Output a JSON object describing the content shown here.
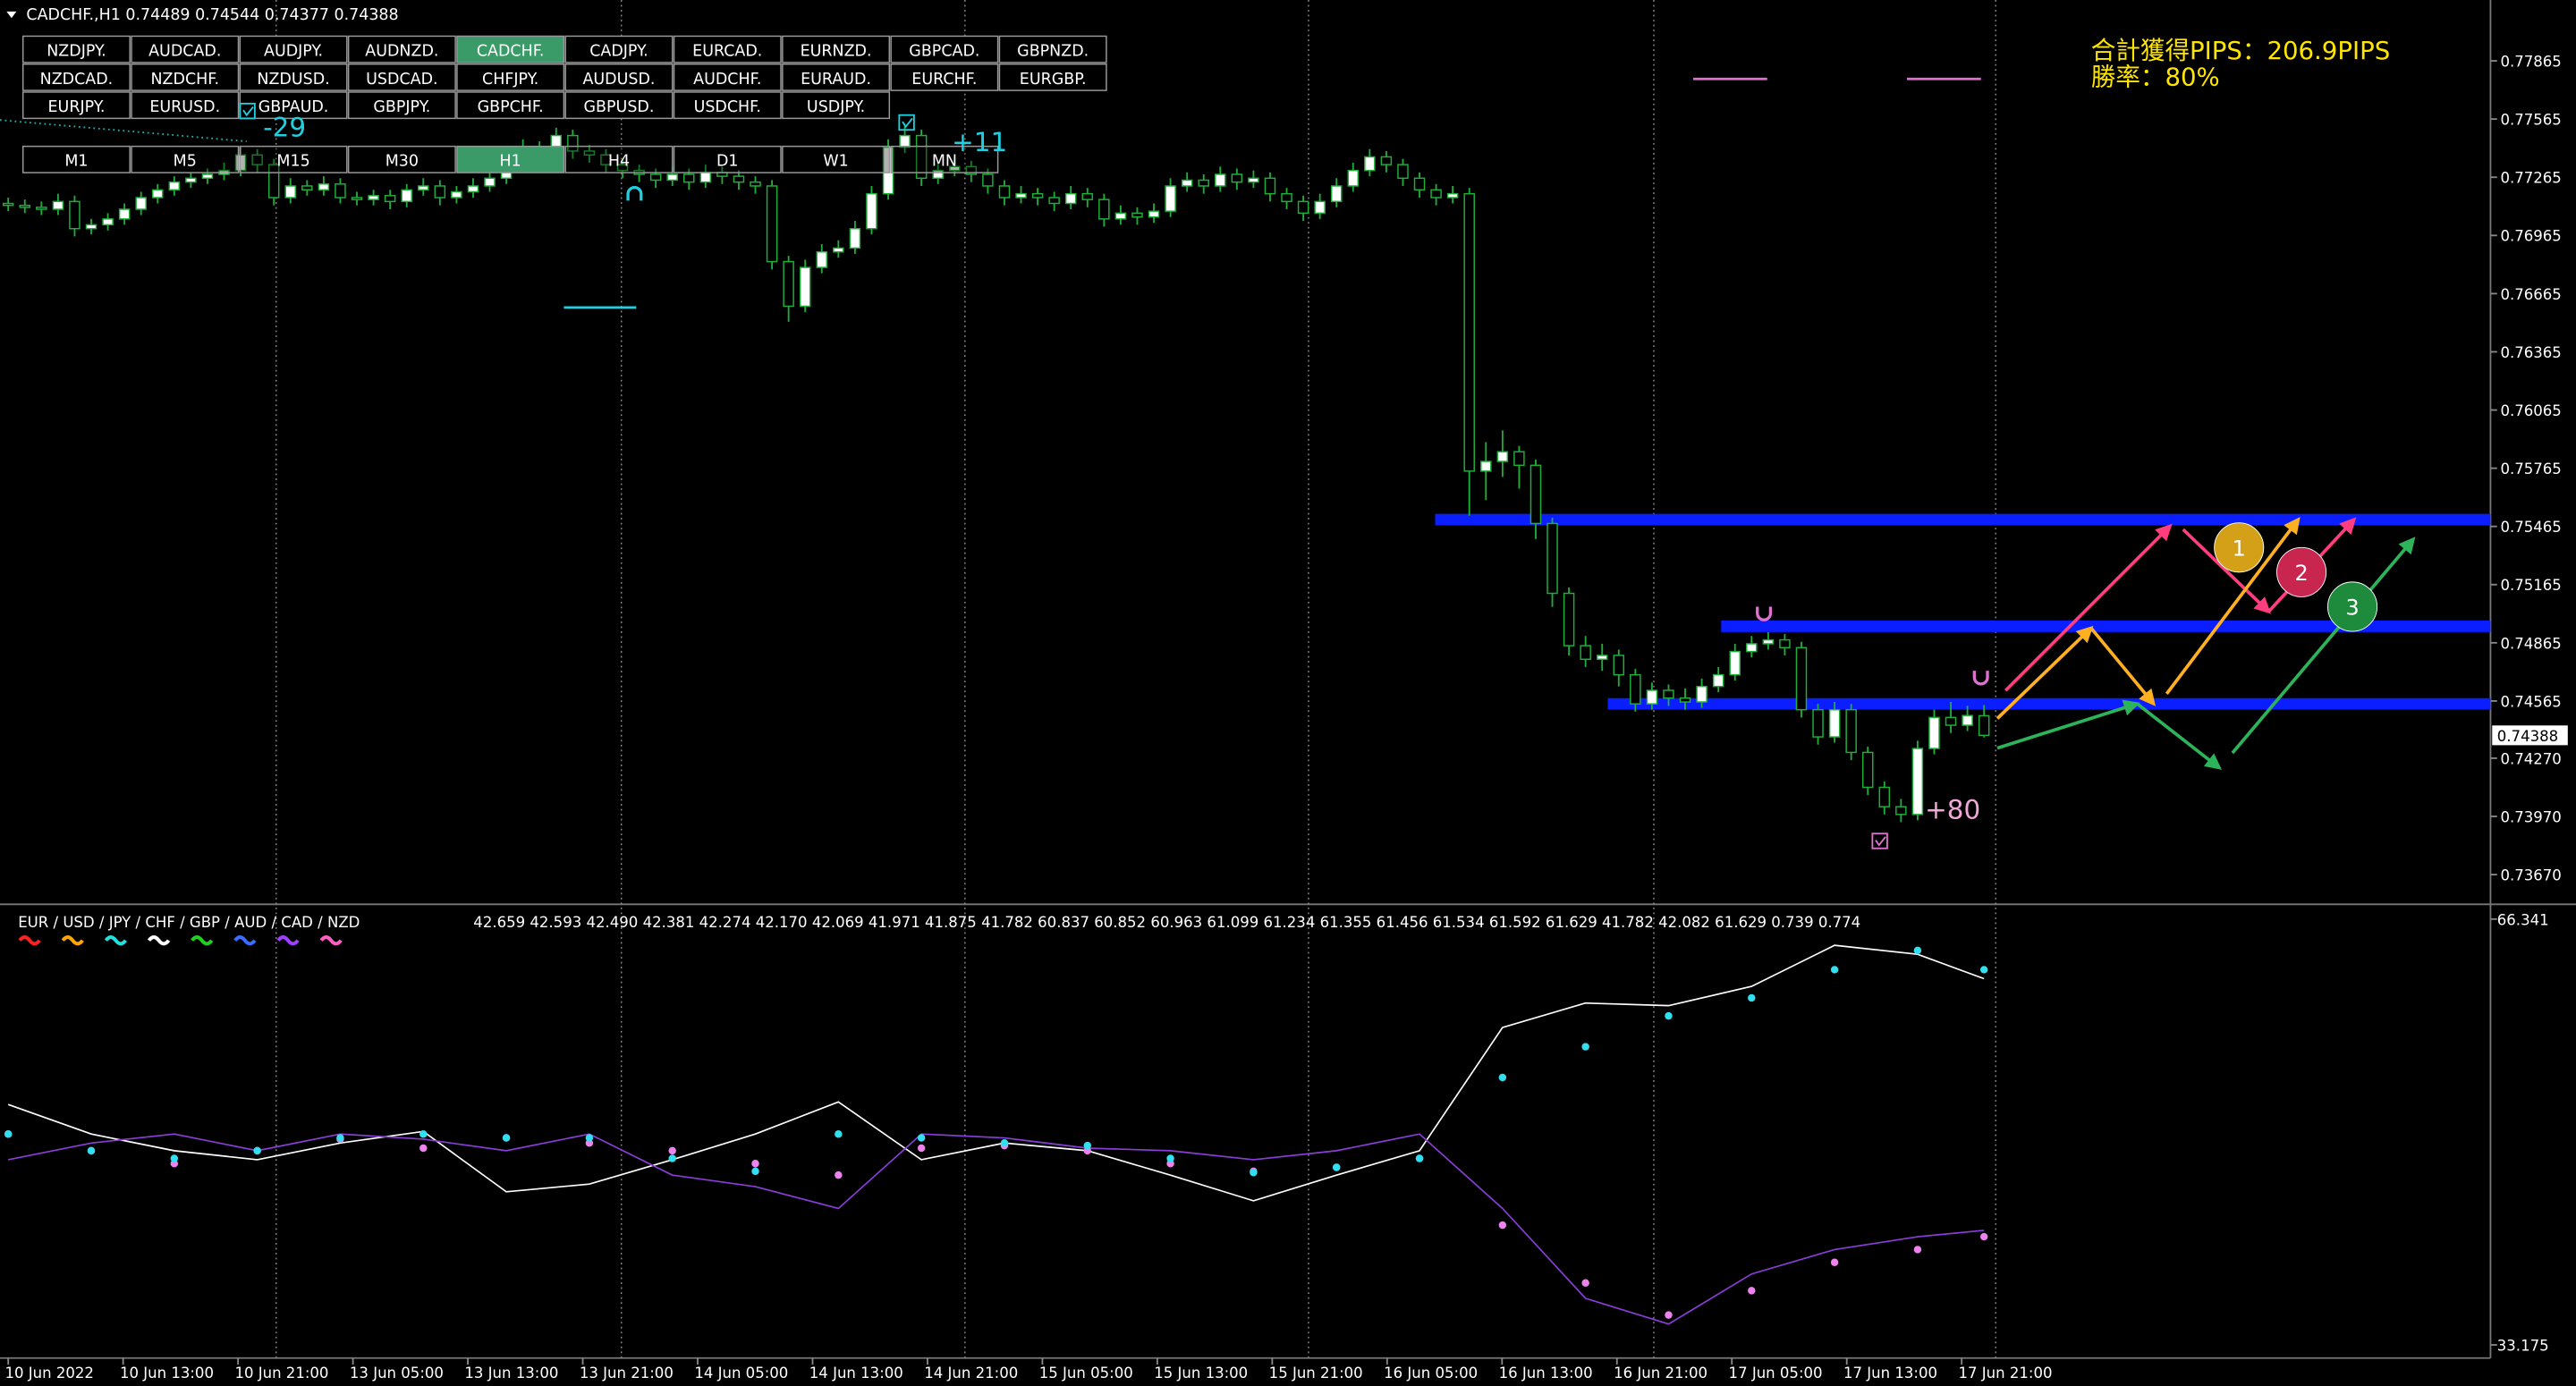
{
  "header": "CADCHF.,H1 0.74489 0.74544 0.74377 0.74388",
  "symbols": [
    [
      "NZDJPY.",
      "AUDCAD.",
      "AUDJPY.",
      "AUDNZD.",
      "CADCHF.",
      "CADJPY.",
      "EURCAD.",
      "EURNZD.",
      "GBPCAD.",
      "GBPNZD."
    ],
    [
      "NZDCAD.",
      "NZDCHF.",
      "NZDUSD.",
      "USDCAD.",
      "CHFJPY.",
      "AUDUSD.",
      "AUDCHF.",
      "EURAUD.",
      "EURCHF.",
      "EURGBP."
    ],
    [
      "EURJPY.",
      "EURUSD.",
      "GBPAUD.",
      "GBPJPY.",
      "GBPCHF.",
      "GBPUSD.",
      "USDCHF.",
      "USDJPY."
    ]
  ],
  "timeframes": [
    "M1",
    "M5",
    "M15",
    "M30",
    "H1",
    "H4",
    "D1",
    "W1",
    "MN"
  ],
  "stats": [
    "合計獲得PIPS：206.9PIPS",
    "勝率：80%"
  ],
  "trade_labels": [
    "-29",
    "+11",
    "+80"
  ],
  "scenario_labels": [
    "1",
    "2",
    "3"
  ],
  "chart_data": [
    {
      "type": "candlestick",
      "ylim": [
        0.73534,
        0.78077
      ],
      "yticks": [
        0.77865,
        0.77565,
        0.77265,
        0.76965,
        0.76665,
        0.76365,
        0.76065,
        0.75765,
        0.75465,
        0.75165,
        0.74865,
        0.74565,
        {
          "value": 0.7427,
          "label": "0.74270"
        },
        {
          "value": 0.7397,
          "label": "0.73970"
        },
        {
          "value": 0.7367,
          "label": "0.73670"
        }
      ],
      "current_price": 0.74388,
      "levels": [
        0.755,
        0.7495,
        0.7455
      ],
      "level_color": "#0a1eff",
      "up_color": "#ffffff",
      "down_color": "#000000",
      "wick_color": "#1fae3a",
      "x_labels": [
        "10 Jun 2022",
        "10 Jun 13:00",
        "10 Jun 21:00",
        "13 Jun 05:00",
        "13 Jun 13:00",
        "13 Jun 21:00",
        "14 Jun 05:00",
        "14 Jun 13:00",
        "14 Jun 21:00",
        "15 Jun 05:00",
        "15 Jun 13:00",
        "15 Jun 21:00",
        "16 Jun 05:00",
        "16 Jun 13:00",
        "16 Jun 21:00",
        "17 Jun 05:00",
        "17 Jun 13:00",
        "17 Jun 21:00"
      ],
      "candles": [
        [
          0.7713,
          0.7716,
          0.7709,
          0.7712
        ],
        [
          0.7712,
          0.7715,
          0.7708,
          0.7711
        ],
        [
          0.7711,
          0.7714,
          0.7707,
          0.771
        ],
        [
          0.771,
          0.7718,
          0.7707,
          0.7714
        ],
        [
          0.7714,
          0.7717,
          0.7696,
          0.77
        ],
        [
          0.77,
          0.7705,
          0.7697,
          0.7702
        ],
        [
          0.7702,
          0.7708,
          0.7699,
          0.7705
        ],
        [
          0.7705,
          0.7713,
          0.7702,
          0.771
        ],
        [
          0.771,
          0.7719,
          0.7707,
          0.7716
        ],
        [
          0.7716,
          0.7723,
          0.7713,
          0.772
        ],
        [
          0.772,
          0.7727,
          0.7717,
          0.7724
        ],
        [
          0.7724,
          0.7729,
          0.7721,
          0.7726
        ],
        [
          0.7726,
          0.7731,
          0.7723,
          0.7728
        ],
        [
          0.7728,
          0.7734,
          0.7725,
          0.773
        ],
        [
          0.773,
          0.7742,
          0.7727,
          0.7738
        ],
        [
          0.7738,
          0.7741,
          0.7729,
          0.7733
        ],
        [
          0.7733,
          0.7736,
          0.7712,
          0.7716
        ],
        [
          0.7716,
          0.7726,
          0.7713,
          0.7722
        ],
        [
          0.7722,
          0.7725,
          0.7717,
          0.772
        ],
        [
          0.772,
          0.7727,
          0.7717,
          0.7723
        ],
        [
          0.7723,
          0.7726,
          0.7713,
          0.7716
        ],
        [
          0.7716,
          0.7719,
          0.7712,
          0.7715
        ],
        [
          0.7715,
          0.772,
          0.7712,
          0.7717
        ],
        [
          0.7717,
          0.772,
          0.771,
          0.7714
        ],
        [
          0.7714,
          0.7723,
          0.7711,
          0.772
        ],
        [
          0.772,
          0.7726,
          0.7717,
          0.7722
        ],
        [
          0.7722,
          0.7725,
          0.7712,
          0.7716
        ],
        [
          0.7716,
          0.7722,
          0.7713,
          0.7719
        ],
        [
          0.7719,
          0.7726,
          0.7716,
          0.7722
        ],
        [
          0.7722,
          0.773,
          0.7719,
          0.7726
        ],
        [
          0.7726,
          0.7739,
          0.7723,
          0.7735
        ],
        [
          0.7735,
          0.7746,
          0.7732,
          0.7742
        ],
        [
          0.7742,
          0.7745,
          0.7734,
          0.7738
        ],
        [
          0.7738,
          0.7752,
          0.7735,
          0.7748
        ],
        [
          0.7748,
          0.7751,
          0.7736,
          0.774
        ],
        [
          0.774,
          0.7743,
          0.7734,
          0.7738
        ],
        [
          0.7738,
          0.7741,
          0.7729,
          0.7733
        ],
        [
          0.7733,
          0.7736,
          0.7726,
          0.773
        ],
        [
          0.773,
          0.7733,
          0.7724,
          0.7728
        ],
        [
          0.7728,
          0.7731,
          0.7721,
          0.7725
        ],
        [
          0.7725,
          0.7732,
          0.7722,
          0.7728
        ],
        [
          0.7728,
          0.7731,
          0.772,
          0.7724
        ],
        [
          0.7724,
          0.7733,
          0.7721,
          0.7729
        ],
        [
          0.7729,
          0.7732,
          0.7723,
          0.7727
        ],
        [
          0.7727,
          0.773,
          0.772,
          0.7724
        ],
        [
          0.7724,
          0.7727,
          0.7718,
          0.7722
        ],
        [
          0.7722,
          0.7725,
          0.7679,
          0.7683
        ],
        [
          0.7683,
          0.7686,
          0.7652,
          0.766
        ],
        [
          0.766,
          0.7684,
          0.7657,
          0.768
        ],
        [
          0.768,
          0.7692,
          0.7677,
          0.7688
        ],
        [
          0.7688,
          0.7694,
          0.7685,
          0.769
        ],
        [
          0.769,
          0.7704,
          0.7687,
          0.77
        ],
        [
          0.77,
          0.7722,
          0.7697,
          0.7718
        ],
        [
          0.7718,
          0.7746,
          0.7715,
          0.7742
        ],
        [
          0.7742,
          0.7754,
          0.7739,
          0.7748
        ],
        [
          0.7748,
          0.7751,
          0.7722,
          0.7726
        ],
        [
          0.7726,
          0.7734,
          0.7723,
          0.773
        ],
        [
          0.773,
          0.7736,
          0.7727,
          0.7732
        ],
        [
          0.7732,
          0.7735,
          0.7724,
          0.7728
        ],
        [
          0.7728,
          0.7731,
          0.7718,
          0.7722
        ],
        [
          0.7722,
          0.7725,
          0.7712,
          0.7716
        ],
        [
          0.7716,
          0.7722,
          0.7713,
          0.7718
        ],
        [
          0.7718,
          0.7721,
          0.7712,
          0.7716
        ],
        [
          0.7716,
          0.7719,
          0.7709,
          0.7713
        ],
        [
          0.7713,
          0.7722,
          0.771,
          0.7718
        ],
        [
          0.7718,
          0.7721,
          0.7711,
          0.7715
        ],
        [
          0.7715,
          0.7718,
          0.7701,
          0.7705
        ],
        [
          0.7705,
          0.7712,
          0.7702,
          0.7708
        ],
        [
          0.7708,
          0.7711,
          0.7702,
          0.7706
        ],
        [
          0.7706,
          0.7713,
          0.7703,
          0.7709
        ],
        [
          0.7709,
          0.7726,
          0.7706,
          0.7722
        ],
        [
          0.7722,
          0.7729,
          0.7719,
          0.7725
        ],
        [
          0.7725,
          0.7728,
          0.7718,
          0.7722
        ],
        [
          0.7722,
          0.7732,
          0.7719,
          0.7728
        ],
        [
          0.7728,
          0.7731,
          0.772,
          0.7724
        ],
        [
          0.7724,
          0.773,
          0.7721,
          0.7726
        ],
        [
          0.7726,
          0.7729,
          0.7714,
          0.7718
        ],
        [
          0.7718,
          0.7721,
          0.771,
          0.7714
        ],
        [
          0.7714,
          0.7717,
          0.7704,
          0.7708
        ],
        [
          0.7708,
          0.7718,
          0.7705,
          0.7714
        ],
        [
          0.7714,
          0.7726,
          0.7711,
          0.7722
        ],
        [
          0.7722,
          0.7734,
          0.7719,
          0.773
        ],
        [
          0.773,
          0.7741,
          0.7727,
          0.7737
        ],
        [
          0.7737,
          0.774,
          0.7729,
          0.7733
        ],
        [
          0.7733,
          0.7736,
          0.7722,
          0.7726
        ],
        [
          0.7726,
          0.7729,
          0.7716,
          0.772
        ],
        [
          0.772,
          0.7723,
          0.7712,
          0.7716
        ],
        [
          0.7716,
          0.7722,
          0.7713,
          0.7718
        ],
        [
          0.7718,
          0.7721,
          0.7552,
          0.7575
        ],
        [
          0.7575,
          0.759,
          0.756,
          0.758
        ],
        [
          0.758,
          0.7596,
          0.7572,
          0.7585
        ],
        [
          0.7585,
          0.7588,
          0.7566,
          0.7578
        ],
        [
          0.7578,
          0.7581,
          0.754,
          0.7548
        ],
        [
          0.7548,
          0.7551,
          0.7505,
          0.7512
        ],
        [
          0.7512,
          0.7515,
          0.748,
          0.7485
        ],
        [
          0.7485,
          0.749,
          0.7474,
          0.7478
        ],
        [
          0.7478,
          0.7486,
          0.7472,
          0.748
        ],
        [
          0.748,
          0.7483,
          0.7464,
          0.747
        ],
        [
          0.747,
          0.7473,
          0.7451,
          0.7455
        ],
        [
          0.7455,
          0.7466,
          0.7452,
          0.7462
        ],
        [
          0.7462,
          0.7465,
          0.7454,
          0.7458
        ],
        [
          0.7458,
          0.7463,
          0.7452,
          0.7456
        ],
        [
          0.7456,
          0.7468,
          0.7453,
          0.7464
        ],
        [
          0.7464,
          0.7474,
          0.7461,
          0.747
        ],
        [
          0.747,
          0.7486,
          0.7467,
          0.7482
        ],
        [
          0.7482,
          0.749,
          0.7479,
          0.7486
        ],
        [
          0.7486,
          0.7492,
          0.7483,
          0.7488
        ],
        [
          0.7488,
          0.7491,
          0.748,
          0.7484
        ],
        [
          0.7484,
          0.7487,
          0.7448,
          0.7452
        ],
        [
          0.7452,
          0.7455,
          0.7434,
          0.7438
        ],
        [
          0.7438,
          0.7456,
          0.7435,
          0.7452
        ],
        [
          0.7452,
          0.7455,
          0.7426,
          0.743
        ],
        [
          0.743,
          0.7433,
          0.7408,
          0.7412
        ],
        [
          0.7412,
          0.7415,
          0.7398,
          0.7402
        ],
        [
          0.7402,
          0.7406,
          0.7394,
          0.7398
        ],
        [
          0.7398,
          0.7436,
          0.7395,
          0.7432
        ],
        [
          0.7432,
          0.7452,
          0.7429,
          0.7448
        ],
        [
          0.7448,
          0.7456,
          0.744,
          0.7444
        ],
        [
          0.7444,
          0.7454,
          0.7441,
          0.7449
        ],
        [
          0.74489,
          0.74544,
          0.74377,
          0.74388
        ]
      ]
    },
    {
      "type": "line",
      "ylim": [
        32.15,
        67.24
      ],
      "yticks": [
        66.341,
        33.175
      ],
      "legend": {
        "text": "EUR  /  USD  /  JPY  /  CHF  /  GBP  /  AUD  /  CAD  /  NZD",
        "colors": [
          "#ff2020",
          "#ffa500",
          "#20e0e0",
          "#ffffff",
          "#20d020",
          "#3a6cff",
          "#a040ff",
          "#ff60c0"
        ]
      },
      "values_text": "42.659 42.593 42.490 42.381 42.274 42.170 42.069 41.971 41.875 41.782 60.837 60.852 60.963 61.099 61.234 61.355 61.456 61.534 61.592 61.629 41.782 42.082 61.629 0.739 0.774",
      "x": [
        0,
        5,
        10,
        15,
        20,
        25,
        30,
        35,
        40,
        45,
        50,
        55,
        60,
        65,
        70,
        75,
        80,
        85,
        90,
        95,
        100,
        105,
        110,
        115,
        119
      ],
      "series": [
        {
          "color": "#ffffff",
          "style": "line",
          "values": [
            51.9,
            49.6,
            48.3,
            47.6,
            48.9,
            49.8,
            45.1,
            45.7,
            47.6,
            49.6,
            52.1,
            47.6,
            48.9,
            48.3,
            46.4,
            44.4,
            46.4,
            48.3,
            57.9,
            59.8,
            59.6,
            61.1,
            64.3,
            63.6,
            61.7
          ]
        },
        {
          "color": "#8a3ed8",
          "style": "line",
          "values": [
            47.6,
            48.9,
            49.6,
            48.3,
            49.6,
            49.2,
            48.3,
            49.6,
            46.4,
            45.5,
            43.8,
            49.6,
            49.3,
            48.5,
            48.3,
            47.6,
            48.3,
            49.6,
            43.8,
            36.8,
            34.8,
            38.7,
            40.6,
            41.6,
            42.1
          ]
        },
        {
          "color": "#ee82ee",
          "style": "dots",
          "values": [
            49.6,
            48.3,
            47.3,
            48.3,
            49.2,
            48.5,
            49.3,
            48.9,
            48.3,
            47.3,
            46.4,
            48.5,
            48.7,
            48.3,
            47.3,
            46.7,
            47.0,
            47.7,
            42.5,
            38.0,
            35.5,
            37.4,
            39.6,
            40.6,
            41.6
          ]
        },
        {
          "color": "#30e0f0",
          "style": "dots",
          "values": [
            49.6,
            48.3,
            47.7,
            48.3,
            49.3,
            49.6,
            49.3,
            49.3,
            47.7,
            46.7,
            49.6,
            49.3,
            48.9,
            48.7,
            47.7,
            46.6,
            47.0,
            47.7,
            54.0,
            56.4,
            58.8,
            60.2,
            62.4,
            63.9,
            62.4
          ]
        }
      ]
    }
  ]
}
